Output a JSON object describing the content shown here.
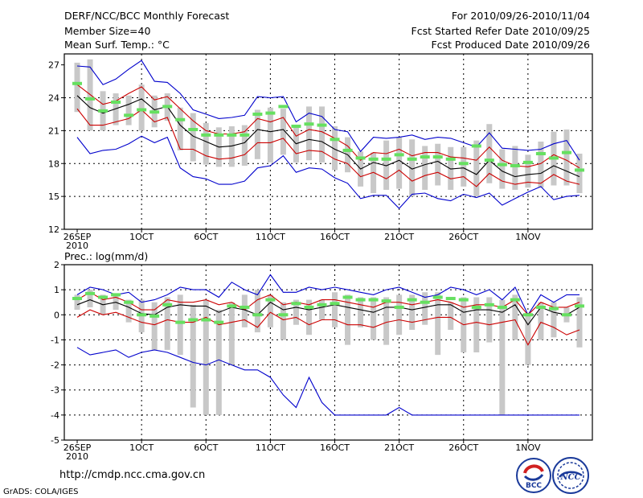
{
  "header": {
    "title": "DERF/NCC/BCC Monthly Forecast",
    "member_size": "Member Size=40",
    "variable": "Mean Surf. Temp.: °C",
    "period": "For 2010/09/26-2010/11/04",
    "started": "Fcst Started Refer Date 2010/09/25",
    "produced": "Fcst Produced Date 2010/09/26"
  },
  "footer": {
    "url": "http://cmdp.ncc.cma.gov.cn",
    "grads": "GrADS: COLA/IGES"
  },
  "logos": {
    "bcc": "BCC",
    "ncc": "NCC"
  },
  "colors": {
    "mean": "#000000",
    "spread": "#cc0000",
    "extreme": "#0000cc",
    "obs": "#66e060",
    "box": "#c8c8c8"
  },
  "chart_data": [
    {
      "type": "line",
      "title": "Mean Surf. Temp.: °C",
      "xlabel": "",
      "ylabel": "°C",
      "xlim": [
        1,
        40
      ],
      "ylim": [
        12,
        28
      ],
      "yticks": [
        12,
        15,
        18,
        21,
        24,
        27
      ],
      "x_tick_labels": [
        {
          "day": 1,
          "label": "26SEP",
          "sub": "2010"
        },
        {
          "day": 6,
          "label": "1OCT"
        },
        {
          "day": 11,
          "label": "6OCT"
        },
        {
          "day": 16,
          "label": "11OCT"
        },
        {
          "day": 21,
          "label": "16OCT"
        },
        {
          "day": 26,
          "label": "21OCT"
        },
        {
          "day": 31,
          "label": "26OCT"
        },
        {
          "day": 36,
          "label": "1NOV"
        }
      ],
      "series": [
        {
          "name": "ensemble max",
          "role": "max",
          "values": [
            26.9,
            26.8,
            25.2,
            25.7,
            26.6,
            27.4,
            25.5,
            25.4,
            24.4,
            22.9,
            22.5,
            22.1,
            22.2,
            22.4,
            24.1,
            24.0,
            24.1,
            21.8,
            22.6,
            22.3,
            21.1,
            20.9,
            19.1,
            20.4,
            20.3,
            20.4,
            20.6,
            20.2,
            20.4,
            20.3,
            19.9,
            19.5,
            20.8,
            19.4,
            19.3,
            19.2,
            19.3,
            19.8,
            20.1,
            18.3
          ]
        },
        {
          "name": "mean+spread",
          "role": "upper",
          "values": [
            25.2,
            24.3,
            23.4,
            23.7,
            24.4,
            25.0,
            23.8,
            24.1,
            23.0,
            21.9,
            21.0,
            20.7,
            20.7,
            20.9,
            22.1,
            21.8,
            22.2,
            20.5,
            21.1,
            20.9,
            20.3,
            19.6,
            18.3,
            19.0,
            18.9,
            19.3,
            18.7,
            19.0,
            19.0,
            18.6,
            18.5,
            18.3,
            19.5,
            18.3,
            17.8,
            17.7,
            18.0,
            18.8,
            18.3,
            17.6
          ]
        },
        {
          "name": "ensemble mean",
          "role": "mean",
          "values": [
            24.2,
            23.1,
            22.6,
            23.0,
            23.4,
            23.9,
            22.9,
            23.2,
            21.5,
            20.5,
            20.0,
            19.5,
            19.6,
            19.9,
            21.1,
            20.9,
            21.1,
            19.8,
            20.2,
            20.0,
            19.3,
            18.8,
            17.5,
            18.1,
            17.8,
            18.3,
            17.5,
            17.9,
            18.2,
            17.5,
            17.6,
            17.0,
            18.3,
            17.3,
            16.8,
            17.0,
            17.1,
            17.8,
            17.3,
            16.8
          ]
        },
        {
          "name": "mean-spread",
          "role": "lower",
          "values": [
            23.0,
            21.5,
            21.5,
            21.8,
            22.1,
            22.9,
            21.8,
            22.2,
            19.3,
            19.3,
            18.7,
            18.4,
            18.5,
            18.8,
            19.9,
            19.9,
            20.3,
            18.9,
            19.2,
            19.1,
            18.4,
            18.0,
            16.8,
            17.2,
            16.6,
            17.4,
            16.4,
            16.9,
            17.2,
            16.6,
            16.8,
            15.9,
            17.1,
            16.4,
            16.1,
            16.3,
            16.2,
            17.0,
            16.4,
            16.1
          ]
        },
        {
          "name": "ensemble min",
          "role": "min",
          "values": [
            20.4,
            18.9,
            19.2,
            19.3,
            19.8,
            20.5,
            19.9,
            20.4,
            17.6,
            16.8,
            16.6,
            16.1,
            16.1,
            16.4,
            17.6,
            17.8,
            18.7,
            17.2,
            17.6,
            17.5,
            16.7,
            16.2,
            14.8,
            15.1,
            15.1,
            13.9,
            15.2,
            15.3,
            14.8,
            14.6,
            15.2,
            14.9,
            15.3,
            14.2,
            14.8,
            15.4,
            15.9,
            14.7,
            15.0,
            15.1
          ]
        }
      ],
      "boxes": [
        [
          22.7,
          27.2
        ],
        [
          21.0,
          27.5
        ],
        [
          21.0,
          24.6
        ],
        [
          21.5,
          24.4
        ],
        [
          21.5,
          24.2
        ],
        [
          21.0,
          25.2
        ],
        [
          21.3,
          24.2
        ],
        [
          21.9,
          24.4
        ],
        [
          19.2,
          23.1
        ],
        [
          18.2,
          22.6
        ],
        [
          17.9,
          21.7
        ],
        [
          17.7,
          21.3
        ],
        [
          17.7,
          21.4
        ],
        [
          17.8,
          21.5
        ],
        [
          18.4,
          22.9
        ],
        [
          18.1,
          23.1
        ],
        [
          18.8,
          23.0
        ],
        [
          18.1,
          21.4
        ],
        [
          18.3,
          23.2
        ],
        [
          18.1,
          23.2
        ],
        [
          17.4,
          21.4
        ],
        [
          17.2,
          20.4
        ],
        [
          15.9,
          19.1
        ],
        [
          15.3,
          19.0
        ],
        [
          15.6,
          20.1
        ],
        [
          15.7,
          20.4
        ],
        [
          15.0,
          20.2
        ],
        [
          15.6,
          19.6
        ],
        [
          16.0,
          19.8
        ],
        [
          15.6,
          19.5
        ],
        [
          15.9,
          19.5
        ],
        [
          15.0,
          20.1
        ],
        [
          16.2,
          21.6
        ],
        [
          15.7,
          19.3
        ],
        [
          15.6,
          19.6
        ],
        [
          15.8,
          18.8
        ],
        [
          15.8,
          20.0
        ],
        [
          16.0,
          20.9
        ],
        [
          16.0,
          21.1
        ],
        [
          15.3,
          18.9
        ]
      ],
      "observed": [
        25.3,
        23.9,
        22.8,
        23.6,
        22.4,
        22.9,
        22.7,
        23.2,
        22.0,
        21.1,
        20.6,
        20.6,
        20.6,
        20.6,
        22.5,
        22.6,
        23.2,
        21.4,
        21.6,
        21.5,
        20.2,
        19.2,
        18.5,
        18.4,
        18.4,
        18.8,
        18.4,
        18.6,
        18.6,
        18.4,
        18.0,
        19.6,
        18.3,
        17.9,
        17.8,
        18.1,
        18.9,
        18.5,
        19.0,
        17.4
      ]
    },
    {
      "type": "line",
      "title": "Prec.: log(mm/d)",
      "xlabel": "",
      "ylabel": "log(mm/d)",
      "xlim": [
        1,
        40
      ],
      "ylim": [
        -5,
        2
      ],
      "yticks": [
        -5,
        -4,
        -3,
        -2,
        -1,
        0,
        1,
        2
      ],
      "x_tick_labels": [
        {
          "day": 1,
          "label": "26SEP",
          "sub": "2010"
        },
        {
          "day": 6,
          "label": "1OCT"
        },
        {
          "day": 11,
          "label": "6OCT"
        },
        {
          "day": 16,
          "label": "11OCT"
        },
        {
          "day": 21,
          "label": "16OCT"
        },
        {
          "day": 26,
          "label": "21OCT"
        },
        {
          "day": 31,
          "label": "26OCT"
        },
        {
          "day": 36,
          "label": "1NOV"
        }
      ],
      "series": [
        {
          "name": "ensemble max",
          "role": "max",
          "values": [
            0.8,
            1.1,
            1.0,
            0.8,
            0.9,
            0.5,
            0.6,
            0.8,
            1.1,
            1.0,
            1.0,
            0.7,
            1.3,
            1.0,
            0.8,
            1.6,
            0.9,
            0.9,
            1.1,
            1.0,
            1.1,
            1.0,
            0.9,
            0.8,
            1.0,
            1.1,
            0.9,
            0.7,
            0.8,
            1.1,
            1.0,
            0.8,
            1.0,
            0.6,
            1.1,
            0.0,
            0.8,
            0.5,
            0.8,
            0.8
          ]
        },
        {
          "name": "mean+spread",
          "role": "upper",
          "values": [
            0.6,
            0.9,
            0.6,
            0.7,
            0.5,
            0.2,
            0.2,
            0.6,
            0.5,
            0.5,
            0.6,
            0.4,
            0.5,
            0.2,
            0.6,
            0.8,
            0.4,
            0.5,
            0.4,
            0.6,
            0.6,
            0.5,
            0.4,
            0.3,
            0.5,
            0.5,
            0.4,
            0.5,
            0.6,
            0.5,
            0.3,
            0.4,
            0.4,
            0.3,
            0.6,
            0.0,
            0.5,
            0.3,
            0.3,
            0.5
          ]
        },
        {
          "name": "ensemble mean",
          "role": "mean",
          "values": [
            0.4,
            0.6,
            0.4,
            0.5,
            0.3,
            0.05,
            0.0,
            0.3,
            0.4,
            0.35,
            0.35,
            0.1,
            0.3,
            0.2,
            0.0,
            0.5,
            0.2,
            0.3,
            0.2,
            0.3,
            0.4,
            0.3,
            0.2,
            0.1,
            0.3,
            0.3,
            0.2,
            0.3,
            0.4,
            0.4,
            0.1,
            0.2,
            0.2,
            0.1,
            0.4,
            -0.4,
            0.3,
            0.1,
            0.0,
            0.3
          ]
        },
        {
          "name": "mean-spread",
          "role": "lower",
          "values": [
            -0.1,
            0.2,
            0.0,
            0.1,
            -0.1,
            -0.3,
            -0.4,
            -0.2,
            -0.3,
            -0.3,
            -0.1,
            -0.4,
            -0.3,
            -0.2,
            -0.5,
            0.1,
            -0.2,
            -0.1,
            -0.4,
            -0.2,
            -0.2,
            -0.4,
            -0.4,
            -0.5,
            -0.3,
            -0.2,
            -0.3,
            -0.2,
            -0.1,
            -0.1,
            -0.4,
            -0.3,
            -0.4,
            -0.3,
            -0.2,
            -1.2,
            -0.3,
            -0.5,
            -0.8,
            -0.6
          ]
        },
        {
          "name": "ensemble min",
          "role": "min",
          "values": [
            -1.3,
            -1.6,
            -1.5,
            -1.4,
            -1.7,
            -1.5,
            -1.4,
            -1.5,
            -1.7,
            -1.9,
            -2.0,
            -1.8,
            -2.0,
            -2.2,
            -2.2,
            -2.5,
            -3.2,
            -3.7,
            -2.5,
            -3.5,
            -4.0,
            -4.0,
            -4.0,
            -4.0,
            -4.0,
            -3.7,
            -4.0,
            -4.0,
            -4.0,
            -4.0,
            -4.0,
            -4.0,
            -4.0,
            -4.0,
            -4.0,
            -4.0,
            -4.0,
            -4.0,
            -4.0,
            -4.0
          ]
        }
      ],
      "boxes": [
        [
          0.2,
          0.8
        ],
        [
          0.3,
          1.0
        ],
        [
          0.0,
          0.8
        ],
        [
          0.2,
          0.8
        ],
        [
          -0.3,
          0.6
        ],
        [
          -0.7,
          0.6
        ],
        [
          -1.4,
          0.5
        ],
        [
          -1.4,
          0.7
        ],
        [
          -1.6,
          0.8
        ],
        [
          -3.7,
          0.4
        ],
        [
          -4.0,
          0.6
        ],
        [
          -4.0,
          0.2
        ],
        [
          -2.0,
          0.5
        ],
        [
          -0.5,
          0.8
        ],
        [
          -0.7,
          1.0
        ],
        [
          -0.5,
          0.8
        ],
        [
          -1.0,
          0.5
        ],
        [
          -0.4,
          0.6
        ],
        [
          -0.8,
          0.6
        ],
        [
          -0.2,
          0.6
        ],
        [
          -0.5,
          0.9
        ],
        [
          -1.2,
          0.8
        ],
        [
          -0.5,
          0.7
        ],
        [
          -1.0,
          0.7
        ],
        [
          -1.2,
          0.7
        ],
        [
          -0.8,
          0.8
        ],
        [
          -0.6,
          0.8
        ],
        [
          -0.4,
          0.9
        ],
        [
          -1.6,
          0.9
        ],
        [
          -0.6,
          0.5
        ],
        [
          -1.5,
          0.7
        ],
        [
          -1.5,
          0.7
        ],
        [
          -1.1,
          0.7
        ],
        [
          -4.0,
          0.6
        ],
        [
          -1.0,
          0.8
        ],
        [
          -2.0,
          0.0
        ],
        [
          -1.0,
          0.5
        ],
        [
          -0.9,
          0.5
        ],
        [
          -0.3,
          0.3
        ],
        [
          -1.3,
          0.7
        ]
      ],
      "observed": [
        0.65,
        0.85,
        0.7,
        0.8,
        0.5,
        0.0,
        -0.05,
        0.4,
        -0.3,
        -0.2,
        -0.2,
        -0.3,
        0.35,
        0.3,
        0.0,
        0.6,
        0.0,
        0.45,
        0.3,
        0.4,
        0.45,
        0.7,
        0.6,
        0.6,
        0.55,
        0.3,
        0.6,
        0.5,
        0.7,
        0.65,
        0.6,
        0.3,
        0.4,
        0.3,
        0.6,
        0.0,
        0.3,
        0.25,
        0.0,
        0.35
      ]
    }
  ]
}
